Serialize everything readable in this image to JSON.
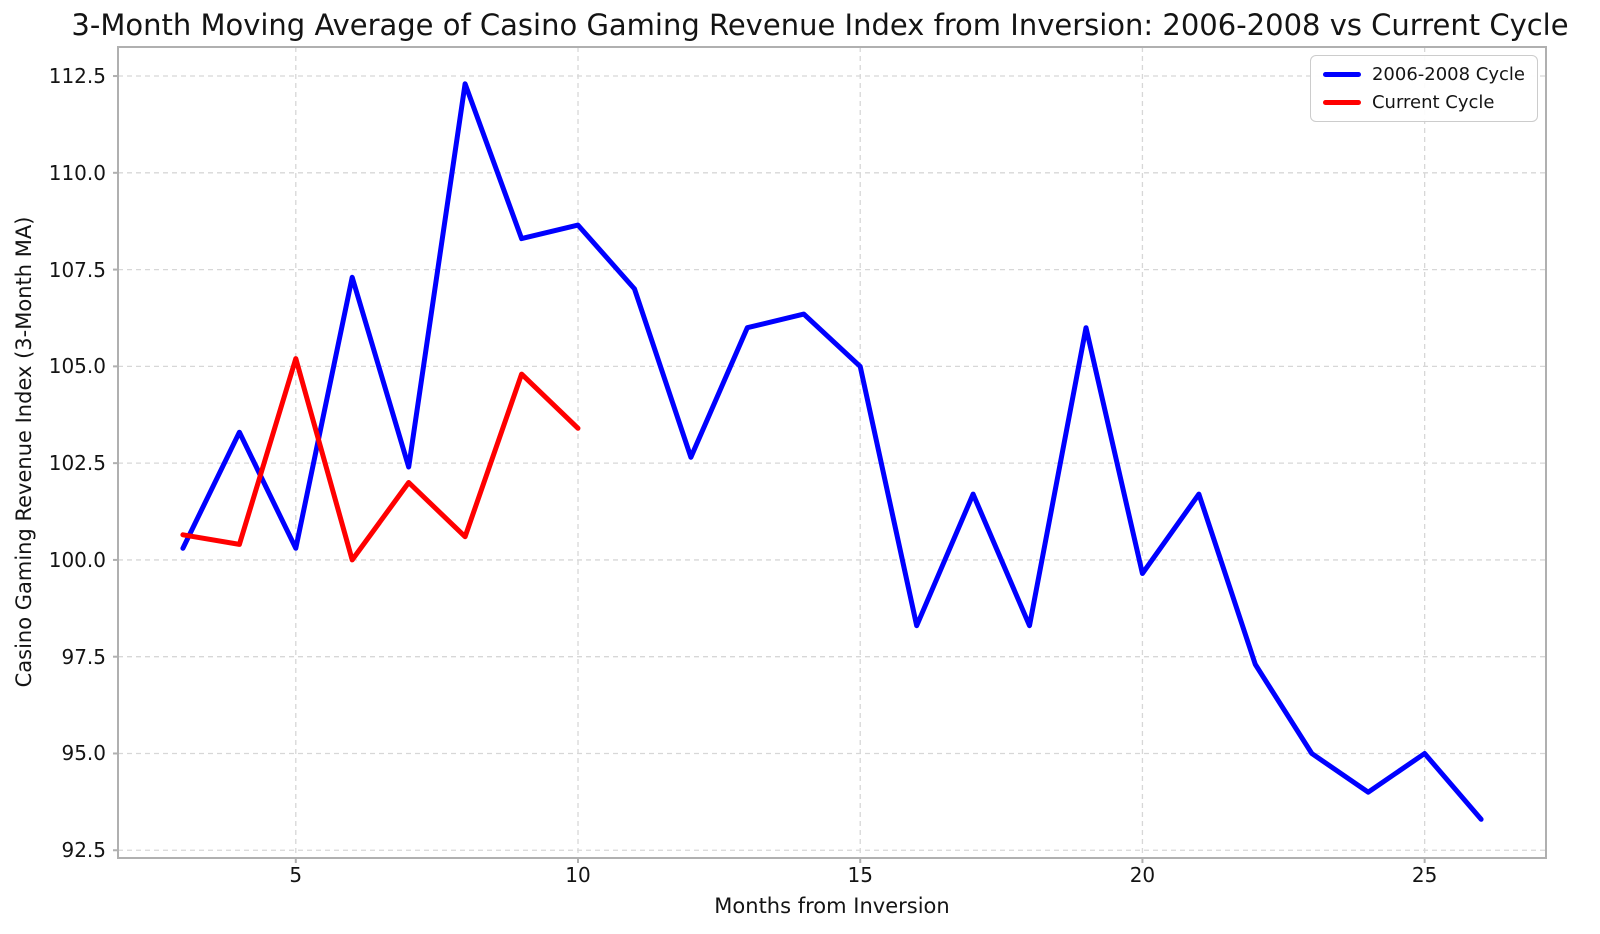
{
  "figure": {
    "background": "#ffffff",
    "spine_color": "#b0b0b0",
    "grid_color": "#d7d7d7",
    "tick_color": "#b0b0b0",
    "text_color": "#141414"
  },
  "chart_data": {
    "type": "line",
    "title": "3-Month Moving Average of Casino Gaming Revenue Index from Inversion: 2006-2008 vs Current Cycle",
    "xlabel": "Months from Inversion",
    "ylabel": "Casino Gaming Revenue Index (3-Month MA)",
    "xlim": [
      1.85,
      27.15
    ],
    "ylim": [
      92.3,
      113.25
    ],
    "xticks": [
      5,
      10,
      15,
      20,
      25
    ],
    "yticks": [
      92.5,
      95.0,
      97.5,
      100.0,
      102.5,
      105.0,
      107.5,
      110.0,
      112.5
    ],
    "grid": true,
    "grid_linestyle": "dashed",
    "legend_position": "upper right",
    "series": [
      {
        "name": "2006-2008 Cycle",
        "color": "#0000ff",
        "x": [
          3,
          4,
          5,
          6,
          7,
          8,
          9,
          10,
          11,
          12,
          13,
          14,
          15,
          16,
          17,
          18,
          19,
          20,
          21,
          22,
          23,
          24,
          25,
          26
        ],
        "values": [
          100.3,
          103.3,
          100.3,
          107.3,
          102.4,
          112.3,
          108.3,
          108.65,
          107.0,
          102.65,
          106.0,
          106.35,
          105.0,
          98.3,
          101.7,
          98.3,
          106.0,
          99.65,
          101.7,
          97.3,
          95.0,
          94.0,
          95.0,
          93.3
        ]
      },
      {
        "name": "Current Cycle",
        "color": "#ff0000",
        "x": [
          3,
          4,
          5,
          6,
          7,
          8,
          9,
          10
        ],
        "values": [
          100.65,
          100.4,
          105.2,
          100.0,
          102.0,
          100.6,
          104.8,
          103.4
        ]
      }
    ]
  }
}
